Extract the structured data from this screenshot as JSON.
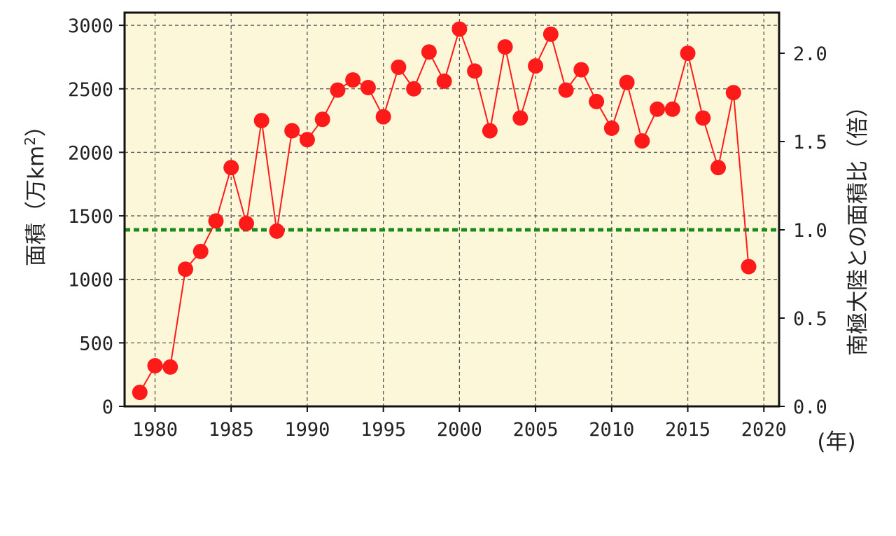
{
  "chart_data": {
    "type": "line",
    "title": "",
    "xlabel": "(年)",
    "ylabel_left": "面積（万km²）",
    "ylabel_left_main": "面積（万km",
    "ylabel_left_sup": "2",
    "ylabel_left_close": "）",
    "ylabel_right": "南極大陸との面積比（倍）",
    "xlim": [
      1978,
      2021
    ],
    "ylim_left": [
      0,
      3100
    ],
    "ylim_right_ticks_at_left_units": {
      "0.0": 0,
      "0.5": 695,
      "1.0": 1390,
      "1.5": 2085,
      "2.0": 2780
    },
    "x_ticks": [
      "1980",
      "1985",
      "1990",
      "1995",
      "2000",
      "2005",
      "2010",
      "2015",
      "2020"
    ],
    "y_ticks_left": [
      "0",
      "500",
      "1000",
      "1500",
      "2000",
      "2500",
      "3000"
    ],
    "y_ticks_right": [
      "0.0",
      "0.5",
      "1.0",
      "1.5",
      "2.0"
    ],
    "grid": true,
    "colors": {
      "background": "#fdf7d9",
      "series": "#ff1a1a",
      "reference_line": "#1a8a1a",
      "grid": "#555555",
      "frame": "#111111"
    },
    "reference_line": {
      "y": 1390,
      "style": "dashed"
    },
    "series": [
      {
        "x": [
          1979,
          1980,
          1981,
          1982,
          1983,
          1984,
          1985,
          1986,
          1987,
          1988,
          1989,
          1990,
          1991,
          1992,
          1993,
          1994,
          1995,
          1996,
          1997,
          1998,
          1999,
          2000,
          2001,
          2002,
          2003,
          2004,
          2005,
          2006,
          2007,
          2008,
          2009,
          2010,
          2011,
          2012,
          2013,
          2014,
          2015,
          2016,
          2017,
          2018,
          2019
        ],
        "values": [
          110,
          320,
          310,
          1080,
          1220,
          1460,
          1880,
          1440,
          2250,
          1380,
          2170,
          2100,
          2260,
          2490,
          2570,
          2510,
          2280,
          2670,
          2500,
          2790,
          2560,
          2970,
          2640,
          2170,
          2830,
          2270,
          2680,
          2930,
          2490,
          2650,
          2400,
          2190,
          2550,
          2090,
          2340,
          2340,
          2780,
          2270,
          1880,
          2470,
          1100
        ]
      }
    ]
  }
}
